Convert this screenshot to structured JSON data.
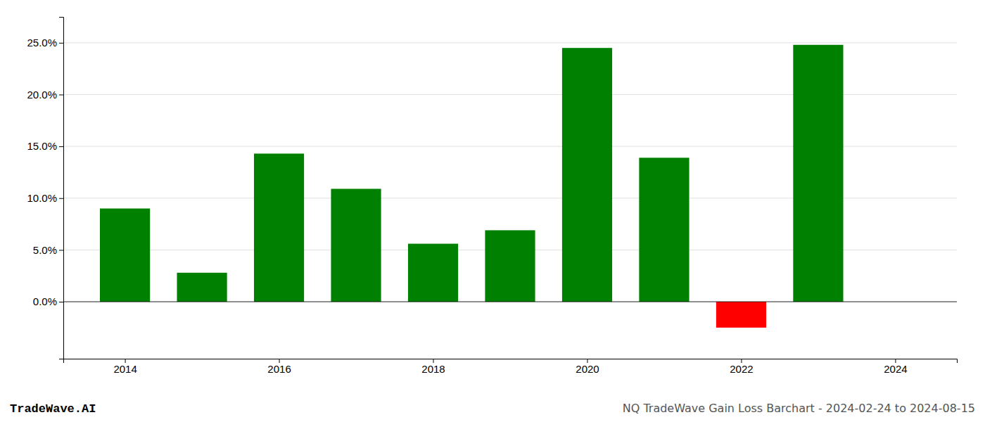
{
  "chart_data": {
    "type": "bar",
    "title": "NQ TradeWave Gain Loss Barchart - 2024-02-24 to 2024-08-15",
    "annotations": [
      "TradeWave.AI"
    ],
    "x": [
      2014,
      2015,
      2016,
      2017,
      2018,
      2019,
      2020,
      2021,
      2022,
      2023
    ],
    "values": [
      0.09,
      0.028,
      0.143,
      0.109,
      0.056,
      0.069,
      0.245,
      0.139,
      -0.025,
      0.248
    ],
    "colors": [
      "#008000",
      "#008000",
      "#008000",
      "#008000",
      "#008000",
      "#008000",
      "#008000",
      "#008000",
      "#ff0000",
      "#008000"
    ],
    "xlim": [
      2013.2,
      2024.8
    ],
    "xticks": [
      2014,
      2016,
      2018,
      2020,
      2022,
      2024
    ],
    "ylim": [
      -0.055,
      0.275
    ],
    "yticks": [
      {
        "value": 0.0,
        "label": "0.0%"
      },
      {
        "value": 0.05,
        "label": "5.0%"
      },
      {
        "value": 0.1,
        "label": "10.0%"
      },
      {
        "value": 0.15,
        "label": "15.0%"
      },
      {
        "value": 0.2,
        "label": "20.0%"
      },
      {
        "value": 0.25,
        "label": "25.0%"
      }
    ],
    "grid": true
  }
}
